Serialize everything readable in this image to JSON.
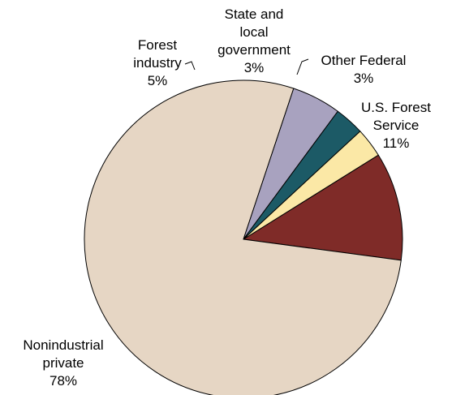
{
  "chart_data": {
    "type": "pie",
    "title": "",
    "slices": [
      {
        "id": "us-forest-service",
        "lines": [
          "U.S. Forest",
          "Service"
        ],
        "value": 11,
        "value_label": "11%",
        "color": "#7f2b28"
      },
      {
        "id": "nonindustrial-private",
        "lines": [
          "Nonindustrial",
          "private"
        ],
        "value": 78,
        "value_label": "78%",
        "color": "#e6d6c4"
      },
      {
        "id": "forest-industry",
        "lines": [
          "Forest",
          "industry"
        ],
        "value": 5,
        "value_label": "5%",
        "color": "#a8a2bf"
      },
      {
        "id": "state-local-government",
        "lines": [
          "State and",
          "local",
          "government"
        ],
        "value": 3,
        "value_label": "3%",
        "color": "#1c5a66"
      },
      {
        "id": "other-federal",
        "lines": [
          "Other Federal"
        ],
        "value": 3,
        "value_label": "3%",
        "color": "#fbe8a6"
      }
    ]
  }
}
